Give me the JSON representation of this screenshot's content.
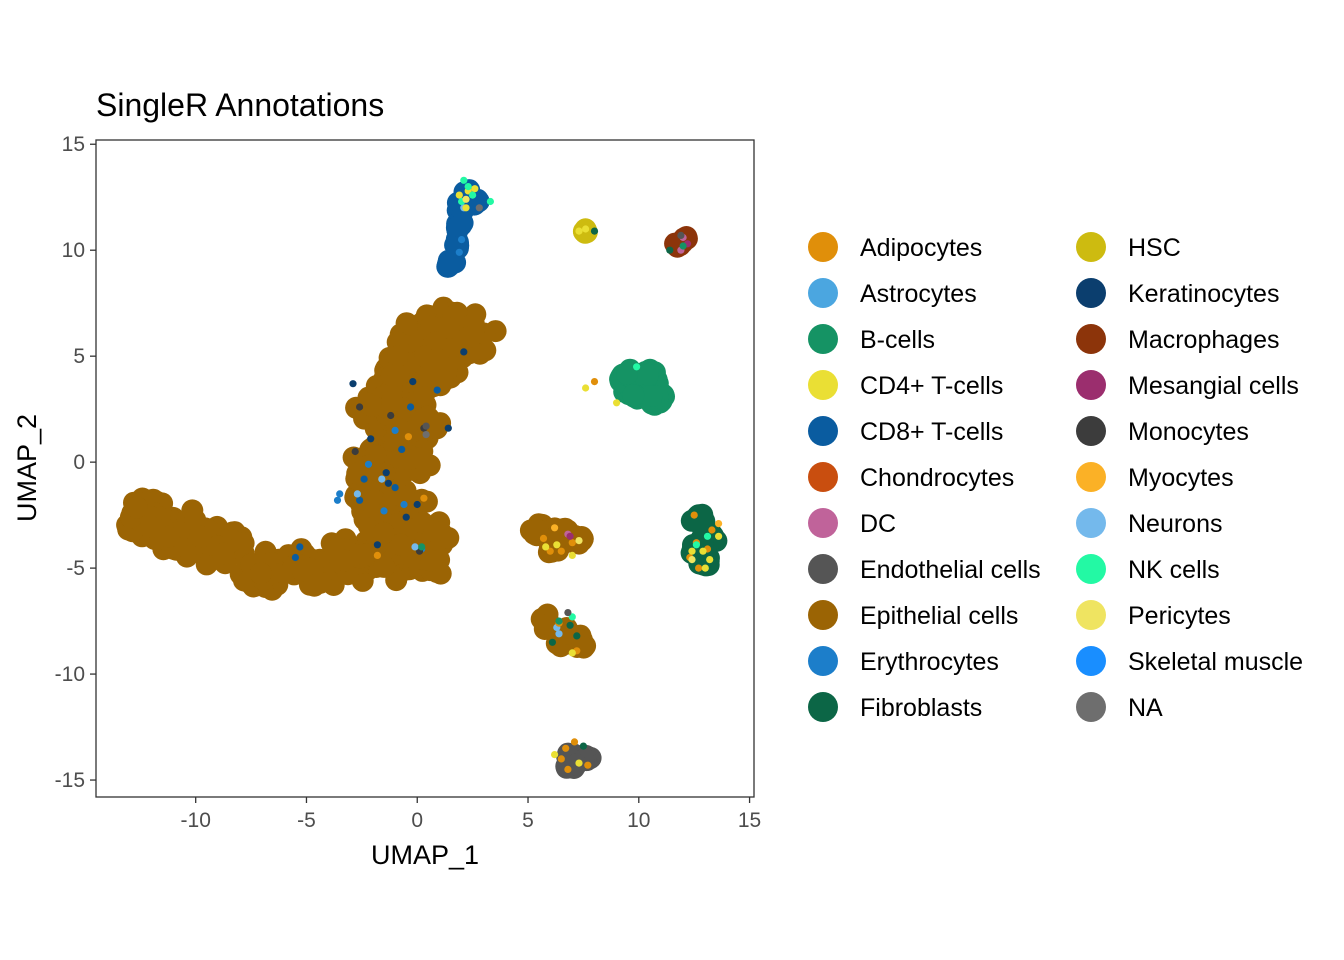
{
  "chart_data": {
    "type": "scatter",
    "title": "SingleR Annotations",
    "xlabel": "UMAP_1",
    "ylabel": "UMAP_2",
    "xlim": [
      -14.5,
      15.2
    ],
    "ylim": [
      -15.8,
      15.2
    ],
    "xticks": [
      -10,
      -5,
      0,
      5,
      10,
      15
    ],
    "yticks": [
      -15,
      -10,
      -5,
      0,
      5,
      10,
      15
    ],
    "grid": false,
    "legend_position": "right",
    "legend": [
      {
        "label": "Adipocytes",
        "color": "#E08F0A"
      },
      {
        "label": "Astrocytes",
        "color": "#4BA6E0"
      },
      {
        "label": "B-cells",
        "color": "#159364"
      },
      {
        "label": "CD4+ T-cells",
        "color": "#EADF34"
      },
      {
        "label": "CD8+ T-cells",
        "color": "#0A5CA0"
      },
      {
        "label": "Chondrocytes",
        "color": "#C94E0F"
      },
      {
        "label": "DC",
        "color": "#C0639A"
      },
      {
        "label": "Endothelial cells",
        "color": "#555555"
      },
      {
        "label": "Epithelial cells",
        "color": "#9B6404"
      },
      {
        "label": "Erythrocytes",
        "color": "#1C7ECA"
      },
      {
        "label": "Fibroblasts",
        "color": "#0C6646"
      },
      {
        "label": "HSC",
        "color": "#CDBB10"
      },
      {
        "label": "Keratinocytes",
        "color": "#0B3E6E"
      },
      {
        "label": "Macrophages",
        "color": "#8C340A"
      },
      {
        "label": "Mesangial cells",
        "color": "#9B2E6E"
      },
      {
        "label": "Monocytes",
        "color": "#3C3C3C"
      },
      {
        "label": "Myocytes",
        "color": "#FBB126"
      },
      {
        "label": "Neurons",
        "color": "#74B9EC"
      },
      {
        "label": "NK cells",
        "color": "#23F9A4"
      },
      {
        "label": "Pericytes",
        "color": "#EFE461"
      },
      {
        "label": "Skeletal muscle",
        "color": "#198EFF"
      },
      {
        "label": "NA",
        "color": "#6E6E6E"
      }
    ],
    "clusters": [
      {
        "name": "epithelial main body",
        "label": "Epithelial cells",
        "region_points": [
          [
            -12.3,
            -2.5
          ],
          [
            -11,
            -3.5
          ],
          [
            -9,
            -3.8
          ],
          [
            -7,
            -5.2
          ],
          [
            -5,
            -5
          ],
          [
            -3,
            -4.6
          ],
          [
            -1.5,
            -4.5
          ],
          [
            0,
            -4.6
          ],
          [
            -1.8,
            -2
          ],
          [
            -1.8,
            0
          ],
          [
            -1.5,
            2.5
          ],
          [
            -0.8,
            4.3
          ],
          [
            0.3,
            5.5
          ],
          [
            1.3,
            6.3
          ],
          [
            2.1,
            5.7
          ],
          [
            0.8,
            4
          ],
          [
            -0.3,
            2
          ],
          [
            -0.5,
            0
          ],
          [
            -0.7,
            -2
          ],
          [
            -1.2,
            -3
          ],
          [
            0.3,
            -3.5
          ]
        ],
        "spread": [
          1.15,
          0.95
        ],
        "count": 900
      },
      {
        "name": "top stalk",
        "label": "CD8+ T-cells",
        "region_points": [
          [
            2.3,
            12.6
          ],
          [
            2.0,
            12.0
          ],
          [
            2.6,
            12.3
          ],
          [
            1.9,
            11.2
          ],
          [
            1.8,
            10.2
          ],
          [
            1.5,
            9.4
          ]
        ],
        "spread": [
          0.25,
          0.3
        ],
        "count": 60
      },
      {
        "name": "HSC cluster",
        "label": "HSC",
        "region_points": [
          [
            7.6,
            10.9
          ]
        ],
        "spread": [
          0.15,
          0.1
        ],
        "count": 8
      },
      {
        "name": "macrophage cluster",
        "label": "Macrophages",
        "region_points": [
          [
            12.1,
            10.5
          ],
          [
            11.8,
            10.3
          ]
        ],
        "spread": [
          0.18,
          0.15
        ],
        "count": 14
      },
      {
        "name": "B-cell cluster",
        "label": "B-cells",
        "region_points": [
          [
            9.5,
            4.0
          ],
          [
            10.5,
            4.0
          ],
          [
            10.8,
            3.0
          ],
          [
            9.8,
            3.3
          ]
        ],
        "spread": [
          0.4,
          0.35
        ],
        "count": 110
      },
      {
        "name": "fibroblast cluster",
        "label": "Fibroblasts",
        "region_points": [
          [
            12.7,
            -2.7
          ],
          [
            13.2,
            -3.5
          ],
          [
            12.6,
            -4.1
          ],
          [
            13.0,
            -4.7
          ]
        ],
        "spread": [
          0.3,
          0.3
        ],
        "count": 80
      },
      {
        "name": "epithelial cluster A",
        "label": "Epithelial cells",
        "region_points": [
          [
            5.5,
            -3.2
          ],
          [
            6.5,
            -3.3
          ],
          [
            7.3,
            -3.6
          ],
          [
            6.2,
            -4.0
          ]
        ],
        "spread": [
          0.35,
          0.25
        ],
        "count": 70
      },
      {
        "name": "epithelial cluster B",
        "label": "Epithelial cells",
        "region_points": [
          [
            5.8,
            -7.5
          ],
          [
            6.8,
            -8.2
          ],
          [
            7.3,
            -8.5
          ],
          [
            6.5,
            -8.5
          ]
        ],
        "spread": [
          0.3,
          0.35
        ],
        "count": 55
      },
      {
        "name": "endothelial cluster",
        "label": "Endothelial cells",
        "region_points": [
          [
            7.0,
            -13.9
          ],
          [
            7.6,
            -14.0
          ],
          [
            6.9,
            -14.3
          ]
        ],
        "spread": [
          0.3,
          0.2
        ],
        "count": 45
      }
    ],
    "accents": [
      {
        "label": "Keratinocytes",
        "points": [
          [
            -2.9,
            3.7
          ],
          [
            -0.2,
            3.8
          ],
          [
            -1.3,
            -1.0
          ],
          [
            -1.8,
            -3.9
          ],
          [
            0.0,
            -2.0
          ],
          [
            1.4,
            1.6
          ],
          [
            -1.4,
            -0.5
          ],
          [
            -0.5,
            -2.6
          ],
          [
            -2.1,
            1.1
          ],
          [
            2.1,
            5.2
          ]
        ]
      },
      {
        "label": "CD8+ T-cells",
        "points": [
          [
            -2.4,
            -0.8
          ],
          [
            -0.3,
            2.6
          ],
          [
            0.9,
            3.4
          ],
          [
            -1.0,
            -1.2
          ],
          [
            -0.7,
            0.6
          ],
          [
            -2.6,
            -1.8
          ],
          [
            -5.5,
            -4.5
          ],
          [
            -5.3,
            -4.0
          ]
        ]
      },
      {
        "label": "Erythrocytes",
        "points": [
          [
            -3.6,
            -1.8
          ],
          [
            -2.2,
            -0.1
          ],
          [
            -1.0,
            1.5
          ],
          [
            -0.6,
            -2.0
          ],
          [
            -1.5,
            -2.3
          ],
          [
            0.2,
            -4.1
          ],
          [
            -3.5,
            -1.5
          ],
          [
            2.0,
            10.5
          ],
          [
            1.9,
            9.9
          ]
        ]
      },
      {
        "label": "Monocytes",
        "points": [
          [
            0.3,
            1.6
          ],
          [
            -2.6,
            2.6
          ],
          [
            -1.2,
            2.2
          ],
          [
            -2.8,
            0.5
          ],
          [
            0.1,
            -4.2
          ]
        ]
      },
      {
        "label": "Neurons",
        "points": [
          [
            -0.1,
            -4.0
          ],
          [
            -2.7,
            -1.5
          ],
          [
            -1.6,
            -0.8
          ],
          [
            6.3,
            -7.8
          ],
          [
            6.4,
            -8.1
          ],
          [
            2.1,
            12.0
          ]
        ]
      },
      {
        "label": "Adipocytes",
        "points": [
          [
            -0.4,
            1.2
          ],
          [
            0.3,
            -1.7
          ],
          [
            -1.8,
            -4.4
          ],
          [
            8.0,
            3.8
          ],
          [
            6.0,
            -4.2
          ],
          [
            5.7,
            -3.6
          ],
          [
            6.5,
            -4.2
          ],
          [
            7.0,
            -3.8
          ],
          [
            6.4,
            -7.6
          ],
          [
            7.2,
            -8.9
          ],
          [
            6.7,
            -13.5
          ],
          [
            7.1,
            -13.2
          ],
          [
            7.7,
            -14.3
          ],
          [
            6.8,
            -14.5
          ],
          [
            6.5,
            -14.0
          ],
          [
            12.6,
            -3.8
          ],
          [
            13.1,
            -4.1
          ],
          [
            12.3,
            -4.5
          ],
          [
            13.3,
            -3.2
          ],
          [
            12.5,
            -2.5
          ],
          [
            12.7,
            -5.0
          ]
        ]
      },
      {
        "label": "CD4+ T-cells",
        "points": [
          [
            2.3,
            12.8
          ],
          [
            2.2,
            12.0
          ],
          [
            1.9,
            12.6
          ],
          [
            2.6,
            12.9
          ],
          [
            7.3,
            10.9
          ],
          [
            7.6,
            11.0
          ],
          [
            7.6,
            3.5
          ],
          [
            9.0,
            2.8
          ],
          [
            5.8,
            -4.0
          ],
          [
            6.3,
            -3.9
          ],
          [
            7.0,
            -4.4
          ],
          [
            13.6,
            -3.5
          ],
          [
            12.9,
            -4.2
          ],
          [
            13.2,
            -4.6
          ],
          [
            12.4,
            -4.2
          ],
          [
            13.0,
            -5.0
          ],
          [
            6.2,
            -13.8
          ],
          [
            7.3,
            -14.2
          ],
          [
            7.0,
            -9.0
          ]
        ]
      },
      {
        "label": "NK cells",
        "points": [
          [
            2.1,
            13.3
          ],
          [
            2.5,
            12.6
          ],
          [
            3.3,
            12.3
          ],
          [
            2.0,
            12.3
          ],
          [
            2.3,
            13.0
          ],
          [
            13.1,
            -3.5
          ],
          [
            12.6,
            -3.9
          ],
          [
            7.0,
            -7.3
          ],
          [
            9.9,
            4.5
          ]
        ]
      },
      {
        "label": "Fibroblasts",
        "points": [
          [
            11.4,
            10.0
          ],
          [
            8.0,
            10.9
          ],
          [
            6.9,
            -7.7
          ],
          [
            7.2,
            -8.2
          ],
          [
            6.1,
            -8.5
          ],
          [
            7.5,
            -13.4
          ]
        ]
      },
      {
        "label": "DC",
        "points": [
          [
            11.9,
            10.0
          ],
          [
            12.0,
            10.6
          ],
          [
            6.8,
            -3.4
          ]
        ]
      },
      {
        "label": "Mesangial cells",
        "points": [
          [
            6.9,
            -3.5
          ],
          [
            12.2,
            10.3
          ]
        ]
      },
      {
        "label": "B-cells",
        "points": [
          [
            6.4,
            -7.5
          ],
          [
            12.0,
            10.2
          ],
          [
            0.2,
            -4.0
          ]
        ]
      },
      {
        "label": "Pericytes",
        "points": [
          [
            7.3,
            -3.7
          ],
          [
            12.4,
            -4.6
          ],
          [
            2.2,
            12.4
          ]
        ]
      },
      {
        "label": "Myocytes",
        "points": [
          [
            13.6,
            -2.9
          ],
          [
            6.2,
            -3.1
          ]
        ]
      },
      {
        "label": "NA",
        "points": [
          [
            0.4,
            1.3
          ],
          [
            2.8,
            12.0
          ]
        ]
      },
      {
        "label": "Endothelial cells",
        "points": [
          [
            0.4,
            1.7
          ],
          [
            11.9,
            10.7
          ],
          [
            6.8,
            -7.1
          ]
        ]
      }
    ]
  }
}
